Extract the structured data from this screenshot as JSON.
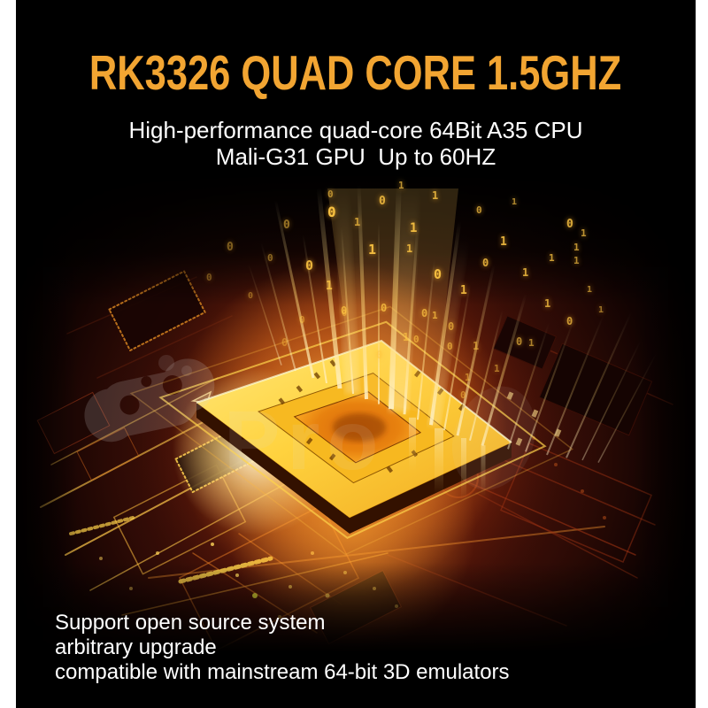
{
  "image": {
    "headline": "RK3326 QUAD CORE 1.5GHZ",
    "headline_color": "#f2a532",
    "subtitle_line1": "High-performance quad-core 64Bit A35 CPU",
    "subtitle_line2": "Mali-G31 GPU  Up to 60HZ",
    "text_color": "#ffffff"
  },
  "features": {
    "line1": "Support open source system",
    "line2": "arbitrary upgrade",
    "line3": "compatible with mainstream 64-bit 3D emulators"
  },
  "scene": {
    "chip_color": "#ffd23e",
    "glow_color": "#ff8c1e",
    "board_color": "#64180c",
    "digit_color": "#ffc845",
    "watermark_text": "Pro",
    "digits": [
      [
        352,
        50,
        "0",
        16,
        0.95
      ],
      [
        398,
        92,
        "1",
        15,
        0.9
      ],
      [
        445,
        67,
        "1",
        14,
        0.9
      ],
      [
        441,
        90,
        "1",
        12,
        0.8
      ],
      [
        327,
        110,
        "0",
        15,
        0.85
      ],
      [
        350,
        132,
        "1",
        13,
        0.8
      ],
      [
        302,
        63,
        "0",
        13,
        0.5
      ],
      [
        284,
        100,
        "0",
        11,
        0.45
      ],
      [
        472,
        120,
        "0",
        15,
        0.9
      ],
      [
        502,
        137,
        "1",
        13,
        0.85
      ],
      [
        527,
        106,
        "0",
        12,
        0.8
      ],
      [
        547,
        82,
        "1",
        13,
        0.85
      ],
      [
        572,
        117,
        "1",
        12,
        0.8
      ],
      [
        602,
        100,
        "1",
        11,
        0.75
      ],
      [
        622,
        62,
        "0",
        13,
        0.8
      ],
      [
        638,
        72,
        "1",
        11,
        0.7
      ],
      [
        597,
        152,
        "1",
        12,
        0.75
      ],
      [
        622,
        172,
        "0",
        12,
        0.7
      ],
      [
        565,
        195,
        "0",
        12,
        0.6
      ],
      [
        579,
        196,
        "1",
        11,
        0.6
      ],
      [
        645,
        135,
        "1",
        10,
        0.6
      ],
      [
        658,
        158,
        "1",
        10,
        0.55
      ],
      [
        238,
        88,
        "0",
        13,
        0.4
      ],
      [
        215,
        122,
        "0",
        11,
        0.35
      ],
      [
        262,
        142,
        "0",
        10,
        0.4
      ],
      [
        320,
        170,
        "0",
        11,
        0.5
      ],
      [
        368,
        162,
        "0",
        10,
        0.5
      ],
      [
        300,
        196,
        "0",
        12,
        0.4
      ],
      [
        410,
        36,
        "0",
        13,
        0.8
      ],
      [
        470,
        30,
        "1",
        12,
        0.8
      ],
      [
        432,
        18,
        "1",
        11,
        0.7
      ],
      [
        520,
        46,
        "0",
        11,
        0.7
      ],
      [
        560,
        36,
        "1",
        10,
        0.65
      ],
      [
        630,
        88,
        "1",
        11,
        0.7
      ],
      [
        630,
        103,
        "1",
        11,
        0.65
      ],
      [
        488,
        178,
        "0",
        12,
        0.6
      ],
      [
        516,
        200,
        "1",
        12,
        0.55
      ],
      [
        540,
        225,
        "1",
        11,
        0.5
      ],
      [
        352,
        28,
        "0",
        11,
        0.6
      ],
      [
        382,
        60,
        "1",
        12,
        0.7
      ],
      [
        367,
        160,
        "0",
        12,
        0.7
      ],
      [
        412,
        157,
        "0",
        12,
        0.75
      ],
      [
        458,
        163,
        "0",
        12,
        0.7
      ],
      [
        470,
        165,
        "1",
        11,
        0.7
      ],
      [
        437,
        190,
        "1",
        12,
        0.65
      ],
      [
        449,
        192,
        "0",
        11,
        0.6
      ],
      [
        407,
        210,
        "0",
        12,
        0.55
      ],
      [
        487,
        200,
        "0",
        11,
        0.6
      ],
      [
        502,
        255,
        "0",
        11,
        0.5
      ],
      [
        507,
        235,
        "1",
        11,
        0.5
      ]
    ]
  },
  "canvas": {
    "background": "#000000",
    "page_background": "#ffffff"
  }
}
